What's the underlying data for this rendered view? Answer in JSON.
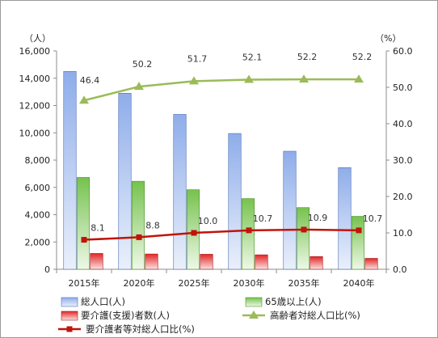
{
  "chart_data": {
    "type": "bar",
    "categories": [
      "2015年",
      "2020年",
      "2025年",
      "2030年",
      "2035年",
      "2040年"
    ],
    "left_axis": {
      "unit_label": "（人）",
      "ylim": [
        0,
        16000
      ],
      "ticks": [
        "0",
        "2,000",
        "4,000",
        "6,000",
        "8,000",
        "10,000",
        "12,000",
        "14,000",
        "16,000"
      ]
    },
    "right_axis": {
      "unit_label": "（%）",
      "ylim": [
        0,
        60
      ],
      "ticks": [
        "0.0",
        "10.0",
        "20.0",
        "30.0",
        "40.0",
        "50.0",
        "60.0"
      ]
    },
    "series": [
      {
        "name": "総人口(人)",
        "kind": "bar",
        "axis": "left",
        "color": "#9db8e8",
        "values": [
          14500,
          12900,
          11350,
          9950,
          8650,
          7450
        ]
      },
      {
        "name": "65歳以上(人)",
        "kind": "bar",
        "axis": "left",
        "color": "#8fd16a",
        "values": [
          6730,
          6450,
          5830,
          5180,
          4520,
          3880
        ]
      },
      {
        "name": "要介護(支援)者数(人)",
        "kind": "bar",
        "axis": "left",
        "color": "#e63838",
        "values": [
          1160,
          1120,
          1100,
          1060,
          930,
          800
        ]
      },
      {
        "name": "高齢者対総人口比(%)",
        "kind": "line",
        "axis": "right",
        "color": "#9bbb59",
        "marker": "triangle",
        "values": [
          46.4,
          50.2,
          51.7,
          52.1,
          52.2,
          52.2
        ],
        "labels": [
          "46.4",
          "50.2",
          "51.7",
          "52.1",
          "52.2",
          "52.2"
        ]
      },
      {
        "name": "要介護者等対総人口比(%)",
        "kind": "line",
        "axis": "right",
        "color": "#c0140c",
        "marker": "square",
        "values": [
          8.1,
          8.8,
          10.0,
          10.7,
          10.9,
          10.7
        ],
        "labels": [
          "8.1",
          "8.8",
          "10.0",
          "10.7",
          "10.9",
          "10.7"
        ]
      }
    ],
    "grid": false,
    "legend": "bottom"
  }
}
